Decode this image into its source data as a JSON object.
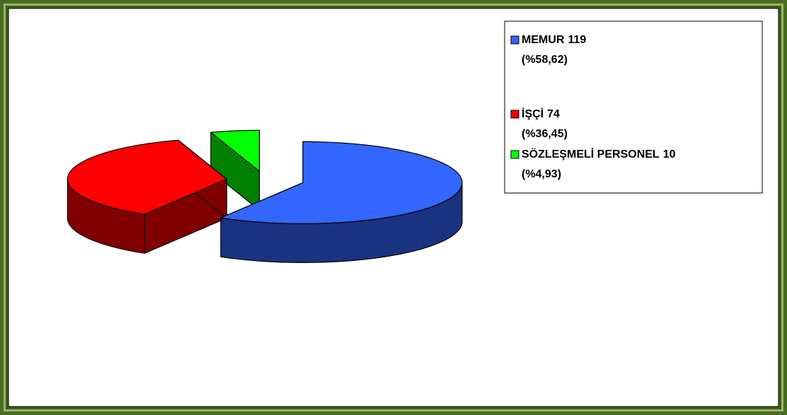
{
  "chart_data": {
    "type": "pie3d",
    "categories": [
      "MEMUR",
      "İŞÇİ",
      "SÖZLEŞMELİ PERSONEL"
    ],
    "counts": [
      119,
      74,
      10
    ],
    "values": [
      58.62,
      36.45,
      4.93
    ],
    "value_labels": [
      "(%58,62)",
      "(%36,45)",
      "(%4,93)"
    ],
    "colors": [
      "#3366ff",
      "#ff0000",
      "#00ff00"
    ],
    "side_colors": [
      "#1a3380",
      "#800000",
      "#008000"
    ],
    "legend": "right"
  }
}
